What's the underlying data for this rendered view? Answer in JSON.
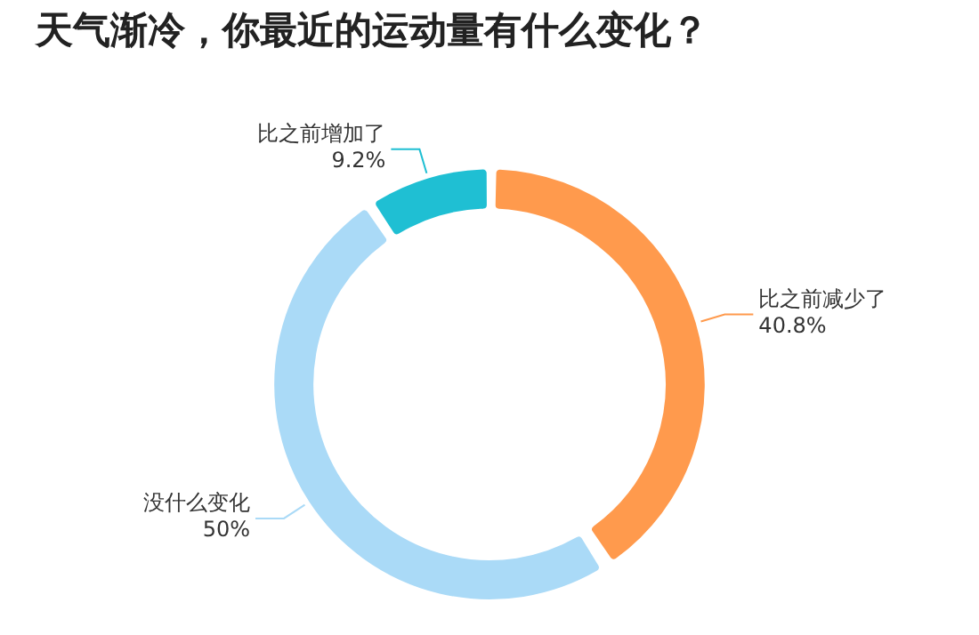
{
  "chart_data": {
    "type": "donut",
    "title": "天气渐冷，你最近的运动量有什么变化？",
    "categories": [
      "比之前减少了",
      "没什么变化",
      "比之前增加了"
    ],
    "values": [
      40.8,
      50,
      9.2
    ],
    "colors": [
      "#ff9a4d",
      "#aadaf7",
      "#1fbfd3"
    ],
    "value_labels": [
      "40.8%",
      "50%",
      "9.2%"
    ],
    "legend": false
  }
}
